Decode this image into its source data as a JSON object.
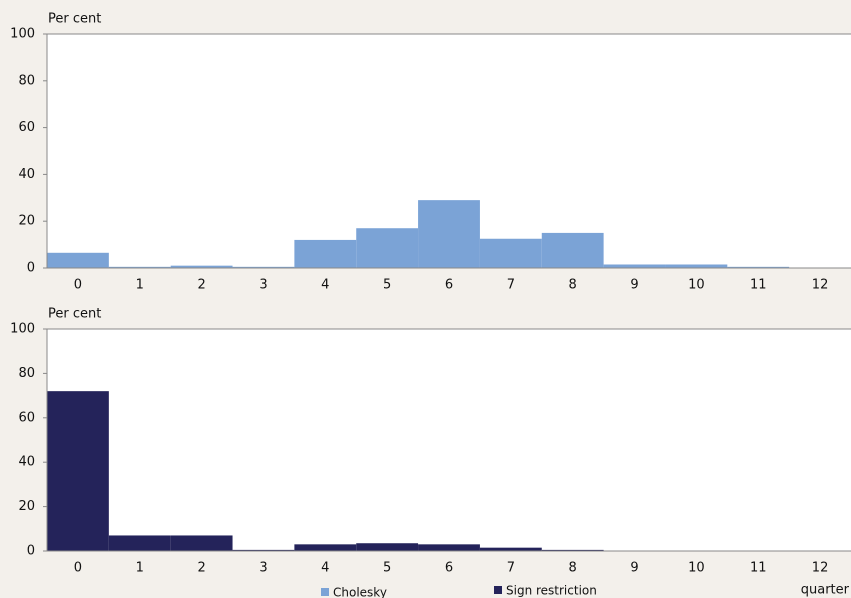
{
  "chart_data": [
    {
      "type": "bar",
      "ylabel": "Per cent",
      "categories": [
        "0",
        "1",
        "2",
        "3",
        "4",
        "5",
        "6",
        "7",
        "8",
        "9",
        "10",
        "11",
        "12"
      ],
      "series": [
        {
          "name": "Cholesky",
          "color": "#7ba3d6",
          "values": [
            6.5,
            0.5,
            1,
            0.5,
            12,
            17,
            29,
            12.5,
            15,
            1.5,
            1.5,
            0.5,
            0
          ]
        }
      ],
      "ylim": [
        0,
        100
      ],
      "yticks": [
        0,
        20,
        40,
        60,
        80,
        100
      ]
    },
    {
      "type": "bar",
      "ylabel": "Per cent",
      "xlabel": "quarter",
      "categories": [
        "0",
        "1",
        "2",
        "3",
        "4",
        "5",
        "6",
        "7",
        "8",
        "9",
        "10",
        "11",
        "12"
      ],
      "series": [
        {
          "name": "Sign restriction",
          "color": "#24235a",
          "values": [
            72,
            7,
            7,
            0.5,
            3,
            3.5,
            3,
            1.5,
            0.5,
            0,
            0,
            0,
            0
          ]
        }
      ],
      "ylim": [
        0,
        100
      ],
      "yticks": [
        0,
        20,
        40,
        60,
        80,
        100
      ]
    }
  ]
}
